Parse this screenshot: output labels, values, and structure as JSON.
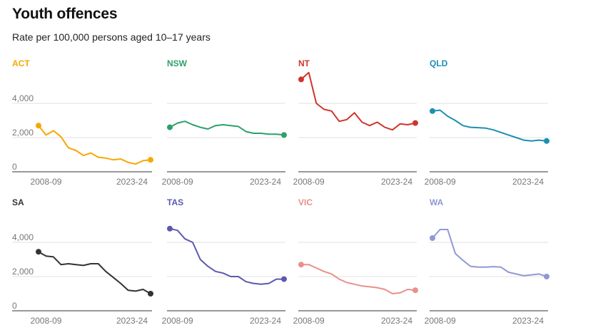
{
  "header": {
    "title": "Youth offences",
    "subtitle": "Rate per 100,000 persons aged 10–17 years"
  },
  "chart_data": {
    "type": "line",
    "title": "Youth offences",
    "subtitle": "Rate per 100,000 persons aged 10–17 years",
    "x_tick_labels": [
      "2008-09",
      "2023-24"
    ],
    "y_tick_labels": [
      "4,000",
      "2,000",
      "0"
    ],
    "y_ticks": [
      4000,
      2000,
      0
    ],
    "ylim": [
      0,
      4500
    ],
    "grid": true,
    "x": [
      "2008-09",
      "2009-10",
      "2010-11",
      "2011-12",
      "2012-13",
      "2013-14",
      "2014-15",
      "2015-16",
      "2016-17",
      "2017-18",
      "2018-19",
      "2019-20",
      "2020-21",
      "2021-22",
      "2022-23",
      "2023-24"
    ],
    "series": [
      {
        "name": "ACT",
        "color": "#f5a800",
        "values": [
          2700,
          2150,
          2400,
          2050,
          1400,
          1250,
          950,
          1100,
          850,
          800,
          700,
          750,
          550,
          450,
          650,
          700
        ]
      },
      {
        "name": "NSW",
        "color": "#2ea06a",
        "values": [
          2600,
          2850,
          2950,
          2750,
          2600,
          2500,
          2700,
          2750,
          2700,
          2650,
          2350,
          2250,
          2250,
          2200,
          2200,
          2150
        ]
      },
      {
        "name": "NT",
        "color": "#d0342c",
        "values": [
          5400,
          5800,
          4000,
          3650,
          3550,
          2950,
          3050,
          3450,
          2900,
          2700,
          2900,
          2600,
          2450,
          2800,
          2750,
          2850
        ]
      },
      {
        "name": "QLD",
        "color": "#1d8fb0",
        "values": [
          3550,
          3600,
          3250,
          3000,
          2700,
          2600,
          2580,
          2550,
          2450,
          2300,
          2150,
          2000,
          1850,
          1800,
          1850,
          1800
        ]
      },
      {
        "name": "SA",
        "color": "#333333",
        "values": [
          3450,
          3200,
          3150,
          2700,
          2750,
          2700,
          2650,
          2750,
          2750,
          2300,
          1950,
          1600,
          1200,
          1150,
          1250,
          1000
        ]
      },
      {
        "name": "TAS",
        "color": "#5b59ad",
        "values": [
          4800,
          4700,
          4200,
          4000,
          3000,
          2600,
          2300,
          2200,
          2000,
          2000,
          1700,
          1600,
          1550,
          1600,
          1850,
          1850
        ]
      },
      {
        "name": "VIC",
        "color": "#e8908a",
        "values": [
          2700,
          2700,
          2500,
          2300,
          2150,
          1850,
          1650,
          1550,
          1450,
          1400,
          1350,
          1250,
          1000,
          1050,
          1250,
          1200
        ]
      },
      {
        "name": "WA",
        "color": "#9098d6",
        "values": [
          4250,
          4750,
          4750,
          3350,
          2950,
          2600,
          2550,
          2550,
          2580,
          2550,
          2250,
          2150,
          2050,
          2100,
          2150,
          2000
        ]
      }
    ]
  }
}
